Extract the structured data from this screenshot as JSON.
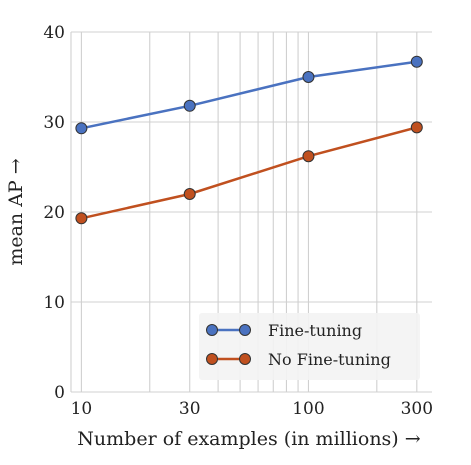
{
  "chart_data": {
    "type": "line",
    "xscale": "log",
    "x": [
      10,
      30,
      100,
      300
    ],
    "xticks": [
      10,
      30,
      100,
      300
    ],
    "xtick_labels": [
      "10",
      "30",
      "100",
      "300"
    ],
    "xlim": [
      9,
      350
    ],
    "ylim": [
      0,
      40
    ],
    "yticks": [
      0,
      10,
      20,
      30,
      40
    ],
    "ytick_labels": [
      "0",
      "10",
      "20",
      "30",
      "40"
    ],
    "xlabel": "Number of examples (in millions) →",
    "ylabel": "mean AP →",
    "grid": true,
    "legend_position": "bottom-right",
    "series": [
      {
        "name": "Fine-tuning",
        "color": "#4a72c0",
        "values": [
          29.3,
          31.8,
          35.0,
          36.7
        ]
      },
      {
        "name": "No Fine-tuning",
        "color": "#c0501f",
        "values": [
          19.3,
          22.0,
          26.2,
          29.4
        ]
      }
    ]
  }
}
